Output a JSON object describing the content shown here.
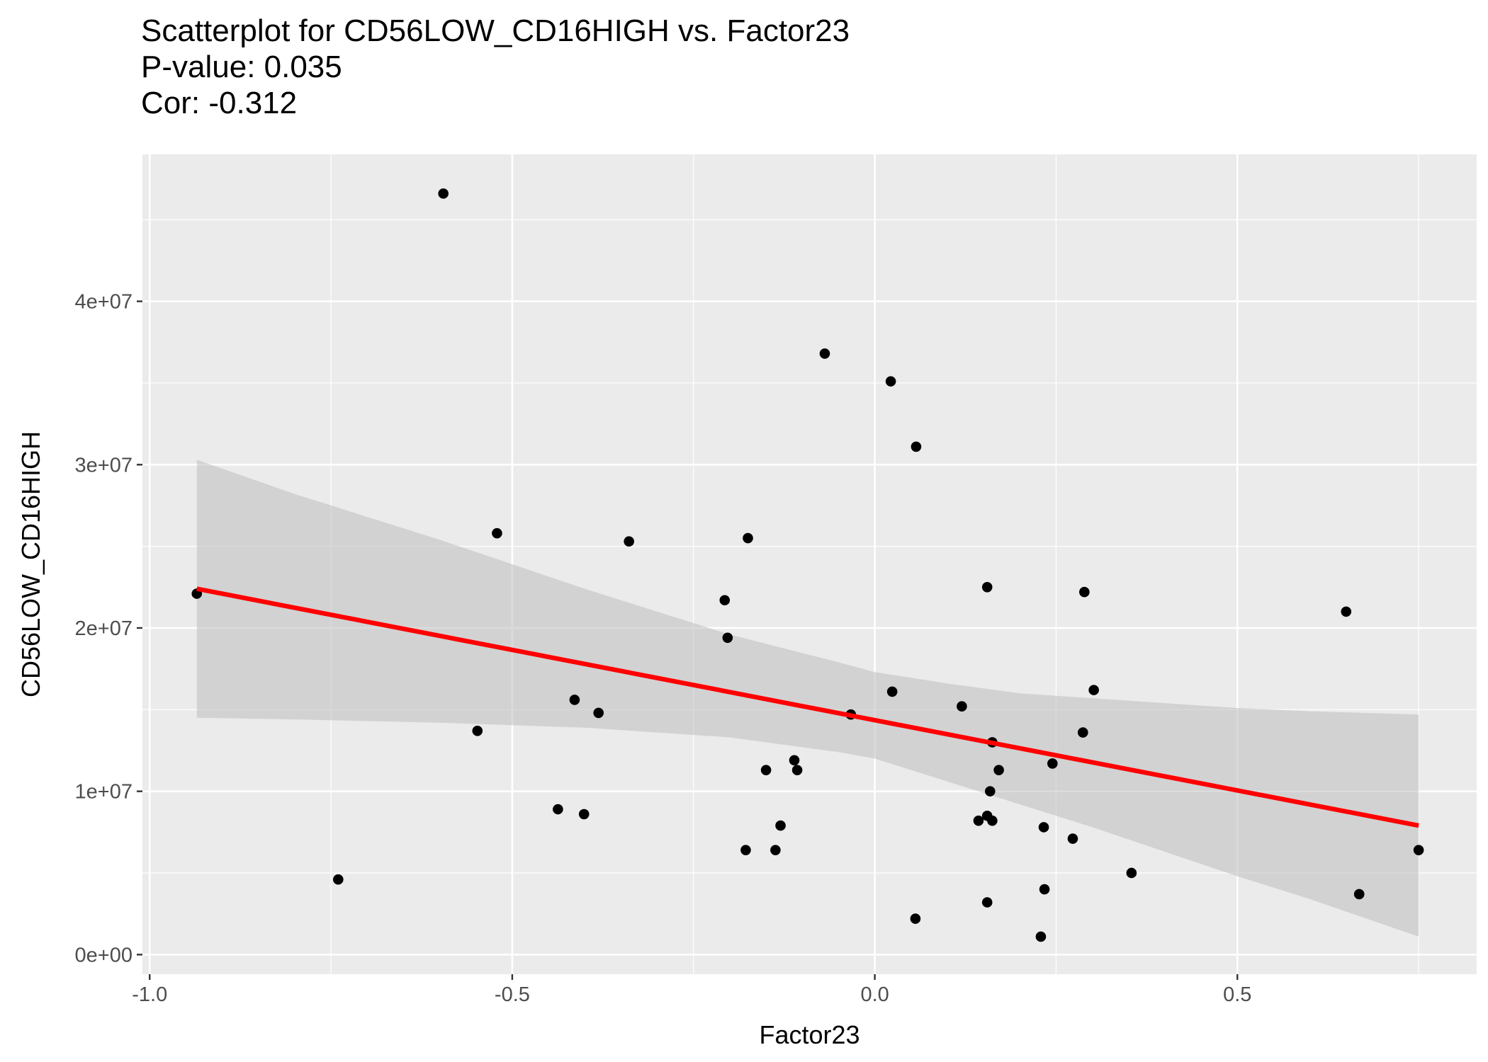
{
  "chart_data": {
    "type": "scatter",
    "title": "Scatterplot for CD56LOW_CD16HIGH vs. Factor23",
    "subtitle_lines": [
      "P-value: 0.035",
      "Cor: -0.312"
    ],
    "xlabel": "Factor23",
    "ylabel": "CD56LOW_CD16HIGH",
    "xlim": [
      -1.01,
      0.83
    ],
    "ylim": [
      -1200000,
      49000000
    ],
    "x_ticks": [
      -1.0,
      -0.5,
      0.0,
      0.5
    ],
    "x_tick_labels": [
      "-1.0",
      "-0.5",
      "0.0",
      "0.5"
    ],
    "y_ticks": [
      0,
      10000000,
      20000000,
      30000000,
      40000000
    ],
    "y_tick_labels": [
      "0e+00",
      "1e+07",
      "2e+07",
      "3e+07",
      "4e+07"
    ],
    "grid": true,
    "colors": {
      "panel": "#ebebeb",
      "grid": "#ffffff",
      "points": "#000000",
      "fit_line": "#ff0000",
      "confidence_band": "#bdbdbd"
    },
    "points": [
      {
        "x": -0.595,
        "y": 46600000
      },
      {
        "x": -0.069,
        "y": 36800000
      },
      {
        "x": 0.022,
        "y": 35100000
      },
      {
        "x": 0.057,
        "y": 31100000
      },
      {
        "x": -0.521,
        "y": 25800000
      },
      {
        "x": -0.339,
        "y": 25300000
      },
      {
        "x": -0.175,
        "y": 25500000
      },
      {
        "x": 0.155,
        "y": 22500000
      },
      {
        "x": 0.289,
        "y": 22200000
      },
      {
        "x": -0.935,
        "y": 22100000
      },
      {
        "x": -0.207,
        "y": 21700000
      },
      {
        "x": 0.65,
        "y": 21000000
      },
      {
        "x": -0.203,
        "y": 19400000
      },
      {
        "x": 0.024,
        "y": 16100000
      },
      {
        "x": 0.302,
        "y": 16200000
      },
      {
        "x": -0.414,
        "y": 15600000
      },
      {
        "x": 0.12,
        "y": 15200000
      },
      {
        "x": -0.381,
        "y": 14800000
      },
      {
        "x": -0.033,
        "y": 14700000
      },
      {
        "x": -0.548,
        "y": 13700000
      },
      {
        "x": 0.287,
        "y": 13600000
      },
      {
        "x": 0.162,
        "y": 13000000
      },
      {
        "x": -0.111,
        "y": 11900000
      },
      {
        "x": 0.245,
        "y": 11700000
      },
      {
        "x": -0.15,
        "y": 11300000
      },
      {
        "x": -0.107,
        "y": 11300000
      },
      {
        "x": 0.171,
        "y": 11300000
      },
      {
        "x": 0.159,
        "y": 10000000
      },
      {
        "x": -0.437,
        "y": 8900000
      },
      {
        "x": -0.401,
        "y": 8600000
      },
      {
        "x": 0.155,
        "y": 8500000
      },
      {
        "x": 0.143,
        "y": 8200000
      },
      {
        "x": 0.162,
        "y": 8200000
      },
      {
        "x": -0.13,
        "y": 7900000
      },
      {
        "x": 0.233,
        "y": 7800000
      },
      {
        "x": 0.273,
        "y": 7100000
      },
      {
        "x": -0.178,
        "y": 6400000
      },
      {
        "x": -0.137,
        "y": 6400000
      },
      {
        "x": 0.75,
        "y": 6400000
      },
      {
        "x": 0.354,
        "y": 5000000
      },
      {
        "x": -0.74,
        "y": 4600000
      },
      {
        "x": 0.234,
        "y": 4000000
      },
      {
        "x": 0.668,
        "y": 3700000
      },
      {
        "x": 0.155,
        "y": 3200000
      },
      {
        "x": 0.056,
        "y": 2200000
      },
      {
        "x": 0.229,
        "y": 1100000
      }
    ],
    "fit_line": {
      "x": [
        -0.935,
        0.75
      ],
      "y": [
        22400000,
        7900000
      ]
    },
    "confidence_band": {
      "x": [
        -0.935,
        -0.8,
        -0.6,
        -0.4,
        -0.2,
        -0.05,
        0.0,
        0.1,
        0.2,
        0.3,
        0.4,
        0.5,
        0.6,
        0.75
      ],
      "upper": [
        30300000,
        28200000,
        25400000,
        22400000,
        19600000,
        17900000,
        17300000,
        16600000,
        16000000,
        15700000,
        15400000,
        15100000,
        14900000,
        14700000
      ],
      "lower": [
        14500000,
        14400000,
        14200000,
        13900000,
        13300000,
        12400000,
        12000000,
        10600000,
        9200000,
        7800000,
        6300000,
        4800000,
        3400000,
        1100000
      ]
    }
  }
}
